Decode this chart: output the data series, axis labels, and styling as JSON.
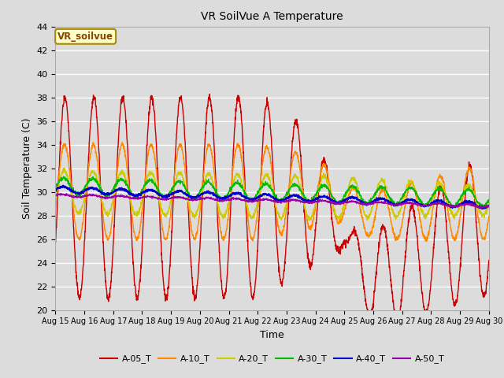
{
  "title": "VR SoilVue A Temperature",
  "xlabel": "Time",
  "ylabel": "Soil Temperature (C)",
  "ylim": [
    20,
    44
  ],
  "yticks": [
    20,
    22,
    24,
    26,
    28,
    30,
    32,
    34,
    36,
    38,
    40,
    42,
    44
  ],
  "x_labels": [
    "Aug 15",
    "Aug 16",
    "Aug 17",
    "Aug 18",
    "Aug 19",
    "Aug 20",
    "Aug 21",
    "Aug 22",
    "Aug 23",
    "Aug 24",
    "Aug 25",
    "Aug 26",
    "Aug 27",
    "Aug 28",
    "Aug 29",
    "Aug 30"
  ],
  "annotation_label": "VR_soilvue",
  "bg_color": "#dcdcdc",
  "series_colors": [
    "#cc0000",
    "#ff8800",
    "#cccc00",
    "#00bb00",
    "#0000cc",
    "#9900aa"
  ],
  "series_names": [
    "A-05_T",
    "A-10_T",
    "A-20_T",
    "A-30_T",
    "A-40_T",
    "A-50_T"
  ],
  "figsize": [
    6.4,
    4.8
  ],
  "dpi": 100
}
